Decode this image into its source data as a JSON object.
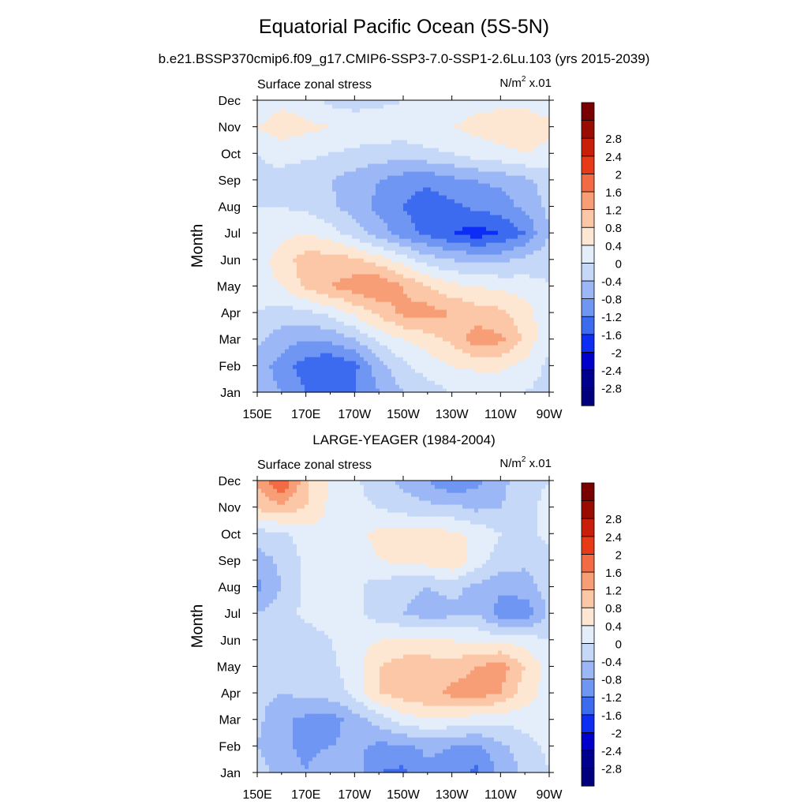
{
  "title": "Equatorial Pacific Ocean (5S-5N)",
  "subtitle": "b.e21.BSSP370cmip6.f09_g17.CMIP6-SSP3-7.0-SSP1-2.6Lu.103 (yrs 2015-2039)",
  "chart_data": [
    {
      "type": "heatmap",
      "title": "",
      "left_label": "Surface zonal stress",
      "units_label": "N/m",
      "units_power": "2",
      "units_scale": "x.01",
      "ylabel": "Month",
      "xlabel": "",
      "x_ticks": [
        "150E",
        "170E",
        "170W",
        "150W",
        "130W",
        "110W",
        "90W"
      ],
      "y_ticks": [
        "Jan",
        "Feb",
        "Mar",
        "Apr",
        "May",
        "Jun",
        "Jul",
        "Aug",
        "Sep",
        "Oct",
        "Nov",
        "Dec"
      ],
      "xlim": [
        "150E",
        "90W"
      ],
      "colorbar_levels": [
        "-2.8",
        "-2.4",
        "-2",
        "-1.6",
        "-1.2",
        "-0.8",
        "-0.4",
        "0",
        "0.4",
        "0.8",
        "1.2",
        "1.6",
        "2",
        "2.4",
        "2.8"
      ],
      "approx_values": [
        [
          -0.5,
          -0.8,
          -1.2,
          -1.5,
          -1.2,
          -0.8,
          -0.4,
          -0.2,
          0.0,
          0.0,
          0.0,
          0.0,
          -0.2
        ],
        [
          -0.6,
          -1.0,
          -1.4,
          -1.6,
          -1.3,
          -0.6,
          -0.1,
          0.2,
          0.4,
          0.5,
          0.5,
          0.3,
          -0.1
        ],
        [
          -0.3,
          -0.6,
          -0.8,
          -0.7,
          -0.4,
          0.1,
          0.4,
          0.6,
          0.9,
          1.4,
          1.3,
          0.7,
          0.1
        ],
        [
          0.0,
          -0.2,
          -0.1,
          0.1,
          0.5,
          0.9,
          1.3,
          1.4,
          1.2,
          1.0,
          0.9,
          0.6,
          0.1
        ],
        [
          0.2,
          0.4,
          0.9,
          1.2,
          1.4,
          1.6,
          1.2,
          0.8,
          0.5,
          0.4,
          0.3,
          0.2,
          0.0
        ],
        [
          0.2,
          0.6,
          1.0,
          1.0,
          0.9,
          0.6,
          0.2,
          -0.2,
          -0.4,
          -0.5,
          -0.5,
          -0.3,
          -0.1
        ],
        [
          0.1,
          0.3,
          0.4,
          0.2,
          -0.2,
          -0.6,
          -1.0,
          -1.3,
          -1.6,
          -1.8,
          -1.6,
          -1.2,
          -0.4
        ],
        [
          0.0,
          0.0,
          -0.1,
          -0.3,
          -0.6,
          -0.9,
          -1.2,
          -1.5,
          -1.3,
          -1.1,
          -1.0,
          -0.7,
          -0.3
        ],
        [
          -0.1,
          -0.2,
          -0.3,
          -0.4,
          -0.6,
          -0.8,
          -1.0,
          -1.1,
          -0.9,
          -0.8,
          -0.7,
          -0.5,
          -0.2
        ],
        [
          0.0,
          0.2,
          0.1,
          0.0,
          -0.1,
          -0.2,
          -0.2,
          -0.1,
          0.0,
          0.2,
          0.3,
          0.4,
          0.3
        ],
        [
          0.4,
          0.6,
          0.5,
          0.4,
          0.3,
          0.3,
          0.2,
          0.3,
          0.4,
          0.5,
          0.6,
          0.6,
          0.5
        ],
        [
          0.1,
          0.3,
          0.2,
          -0.1,
          -0.2,
          -0.1,
          0.0,
          0.1,
          0.2,
          0.3,
          0.3,
          0.3,
          0.2
        ]
      ]
    },
    {
      "type": "heatmap",
      "title": "LARGE-YEAGER (1984-2004)",
      "left_label": "Surface zonal stress",
      "units_label": "N/m",
      "units_power": "2",
      "units_scale": "x.01",
      "ylabel": "Month",
      "xlabel": "",
      "x_ticks": [
        "150E",
        "170E",
        "170W",
        "150W",
        "130W",
        "110W",
        "90W"
      ],
      "y_ticks": [
        "Jan",
        "Feb",
        "Mar",
        "Apr",
        "May",
        "Jun",
        "Jul",
        "Aug",
        "Sep",
        "Oct",
        "Nov",
        "Dec"
      ],
      "xlim": [
        "150E",
        "90W"
      ],
      "colorbar_levels": [
        "-2.8",
        "-2.4",
        "-2",
        "-1.6",
        "-1.2",
        "-0.8",
        "-0.4",
        "0",
        "0.4",
        "0.8",
        "1.2",
        "1.6",
        "2",
        "2.4",
        "2.8"
      ],
      "approx_values": [
        [
          -0.2,
          -0.6,
          -0.8,
          -0.5,
          -0.6,
          -1.2,
          -1.3,
          -0.9,
          -1.0,
          -1.3,
          -0.7,
          -0.3,
          0.0
        ],
        [
          -0.4,
          -0.7,
          -0.9,
          -0.8,
          -0.7,
          -0.9,
          -0.9,
          -0.7,
          -0.8,
          -0.9,
          -0.5,
          -0.2,
          0.1
        ],
        [
          -0.3,
          -0.7,
          -0.9,
          -1.0,
          -0.6,
          -0.2,
          0.2,
          0.4,
          0.3,
          0.2,
          0.1,
          0.2,
          0.3
        ],
        [
          -0.3,
          -0.4,
          -0.3,
          -0.2,
          0.1,
          0.8,
          1.0,
          1.1,
          1.3,
          1.4,
          1.2,
          0.6,
          0.2
        ],
        [
          -0.2,
          -0.4,
          -0.3,
          -0.1,
          0.2,
          0.8,
          1.0,
          1.0,
          1.0,
          1.2,
          1.4,
          0.8,
          0.2
        ],
        [
          -0.2,
          -0.3,
          -0.2,
          0.0,
          0.2,
          0.4,
          0.5,
          0.5,
          0.4,
          0.3,
          0.3,
          0.2,
          0.0
        ],
        [
          -0.4,
          -0.2,
          0.1,
          0.2,
          0.1,
          -0.2,
          -0.4,
          -0.6,
          -0.5,
          -0.4,
          -1.0,
          -1.1,
          -0.3
        ],
        [
          -0.9,
          -0.4,
          0.1,
          0.3,
          0.1,
          -0.2,
          -0.3,
          -0.4,
          -0.3,
          -0.5,
          -0.7,
          -0.6,
          -0.2
        ],
        [
          -0.6,
          -0.3,
          0.1,
          0.3,
          0.2,
          0.4,
          0.5,
          0.6,
          0.8,
          0.2,
          -0.2,
          -0.3,
          -0.1
        ],
        [
          -0.2,
          -0.1,
          0.2,
          0.3,
          0.3,
          0.5,
          0.6,
          0.6,
          0.5,
          0.3,
          0.0,
          -0.1,
          0.1
        ],
        [
          0.9,
          1.1,
          0.8,
          0.3,
          0.1,
          0.0,
          -0.2,
          -0.3,
          -0.3,
          -0.5,
          -0.4,
          -0.2,
          0.2
        ],
        [
          1.3,
          2.0,
          0.9,
          0.4,
          0.1,
          -0.3,
          -0.5,
          -0.8,
          -1.2,
          -0.9,
          -0.5,
          -0.2,
          0.0
        ]
      ]
    }
  ],
  "colors": {
    "palette": [
      "#00007f",
      "#00008f",
      "#0000cc",
      "#0d2df5",
      "#3c6bf0",
      "#6e96f2",
      "#9bb7f5",
      "#c6d8f8",
      "#e4eefb",
      "#fde6d2",
      "#fcc7a6",
      "#f89e76",
      "#f26b44",
      "#e83a17",
      "#c81e0a",
      "#9a0c00",
      "#7a0000"
    ]
  }
}
